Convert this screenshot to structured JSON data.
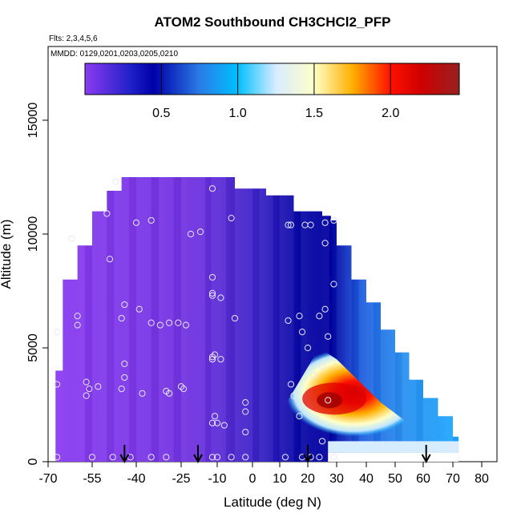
{
  "chart_data": {
    "type": "heatmap",
    "title": "ATOM2 Southbound CH3CHCl2_PFP",
    "flights_note": "Flts: 2,3,4,5,6",
    "dates_note": "MMDD: 0129,0201,0203,0205,0210",
    "xlabel": "Latitude (deg N)",
    "ylabel": "Altitude (m)",
    "xlim": [
      -70,
      80
    ],
    "ylim": [
      0,
      17500
    ],
    "x_ticks": [
      -70,
      -55,
      -40,
      -25,
      -10,
      0,
      10,
      20,
      30,
      40,
      50,
      60,
      70,
      80
    ],
    "x_tick_labels": [
      "-70",
      "-55",
      "-40",
      "-25",
      "-10",
      "0",
      "10",
      "20",
      "30",
      "40",
      "50",
      "60",
      "70",
      "80"
    ],
    "y_ticks": [
      0,
      5000,
      10000,
      15000
    ],
    "y_tick_labels": [
      "0",
      "5000",
      "10000",
      "15000"
    ],
    "colorbar": {
      "range": [
        0.0,
        2.45
      ],
      "ticks": [
        0.5,
        1.0,
        1.5,
        2.0
      ],
      "tick_labels": [
        "0.5",
        "1.0",
        "1.5",
        "2.0"
      ],
      "stops": [
        {
          "v": 0.0,
          "color": "#8b3cf0"
        },
        {
          "v": 0.3,
          "color": "#2020c8"
        },
        {
          "v": 0.45,
          "color": "#0000a8"
        },
        {
          "v": 0.75,
          "color": "#2a7be6"
        },
        {
          "v": 1.0,
          "color": "#00c0ff"
        },
        {
          "v": 1.25,
          "color": "#d8ecff"
        },
        {
          "v": 1.5,
          "color": "#ffffc8"
        },
        {
          "v": 1.75,
          "color": "#ffb000"
        },
        {
          "v": 2.0,
          "color": "#ff1000"
        },
        {
          "v": 2.2,
          "color": "#d00000"
        },
        {
          "v": 2.45,
          "color": "#962020"
        }
      ]
    },
    "field_extent": {
      "lat_min": -67.5,
      "lat_max": 72,
      "top_altitude": [
        [
          -67.5,
          4000
        ],
        [
          -65,
          8000
        ],
        [
          -60,
          9500
        ],
        [
          -55,
          11000
        ],
        [
          -50,
          11900
        ],
        [
          -45,
          12500
        ],
        [
          -20,
          12500
        ],
        [
          -10,
          12500
        ],
        [
          -5,
          12000
        ],
        [
          0,
          12000
        ],
        [
          5,
          11700
        ],
        [
          15,
          11000
        ],
        [
          25,
          10800
        ],
        [
          28,
          10600
        ],
        [
          30,
          9500
        ],
        [
          35,
          8000
        ],
        [
          40,
          7000
        ],
        [
          45,
          5800
        ],
        [
          50,
          4800
        ],
        [
          55,
          3600
        ],
        [
          60,
          2800
        ],
        [
          65,
          2000
        ],
        [
          70,
          1100
        ],
        [
          72,
          700
        ]
      ]
    },
    "hotspot": {
      "lat": 27,
      "alt": 2700,
      "peak_value": 2.3
    },
    "sample_points": [
      [
        -67,
        5700
      ],
      [
        -67,
        3400
      ],
      [
        -67,
        200
      ],
      [
        -62,
        9800
      ],
      [
        -60,
        6400
      ],
      [
        -60,
        6000
      ],
      [
        -57,
        3500
      ],
      [
        -57,
        2900
      ],
      [
        -56,
        3200
      ],
      [
        -53,
        3300
      ],
      [
        -50,
        10900
      ],
      [
        -49,
        8900
      ],
      [
        -47,
        12300
      ],
      [
        -45,
        3200
      ],
      [
        -44,
        3700
      ],
      [
        -44,
        4300
      ],
      [
        -44,
        6900
      ],
      [
        -45,
        6300
      ],
      [
        -40,
        10500
      ],
      [
        -39,
        6700
      ],
      [
        -38,
        3000
      ],
      [
        -35,
        10600
      ],
      [
        -35,
        6100
      ],
      [
        -32,
        6000
      ],
      [
        -30,
        3100
      ],
      [
        -29,
        3000
      ],
      [
        -29,
        6100
      ],
      [
        -26,
        6100
      ],
      [
        -25,
        3300
      ],
      [
        -24,
        3200
      ],
      [
        -23,
        6000
      ],
      [
        -21,
        10000
      ],
      [
        -17,
        10100
      ],
      [
        -6,
        10700
      ],
      [
        -12,
        12000
      ],
      [
        -12,
        8100
      ],
      [
        -12,
        7400
      ],
      [
        -12,
        7300
      ],
      [
        -12,
        4600
      ],
      [
        -12,
        4500
      ],
      [
        -11,
        4700
      ],
      [
        -9,
        7200
      ],
      [
        -9,
        4500
      ],
      [
        -11,
        2000
      ],
      [
        -10,
        1700
      ],
      [
        -12,
        1700
      ],
      [
        -8,
        1600
      ],
      [
        -5,
        6300
      ],
      [
        -2,
        2200
      ],
      [
        -2,
        2600
      ],
      [
        -2,
        1300
      ],
      [
        -12,
        200
      ],
      [
        -10,
        200
      ],
      [
        -6,
        200
      ],
      [
        -2,
        200
      ],
      [
        13,
        10400
      ],
      [
        14,
        10400
      ],
      [
        19,
        10400
      ],
      [
        13,
        6200
      ],
      [
        17,
        6400
      ],
      [
        18,
        5700
      ],
      [
        14,
        3400
      ],
      [
        15,
        2900
      ],
      [
        17,
        2000
      ],
      [
        21,
        10400
      ],
      [
        26,
        10500
      ],
      [
        29,
        10600
      ],
      [
        26,
        9600
      ],
      [
        29,
        7800
      ],
      [
        26,
        6700
      ],
      [
        24,
        6400
      ],
      [
        27,
        5500
      ],
      [
        20,
        5000
      ],
      [
        25,
        4200
      ],
      [
        22,
        3800
      ],
      [
        27,
        2700
      ],
      [
        25,
        900
      ],
      [
        12,
        200
      ],
      [
        18,
        200
      ],
      [
        21,
        200
      ],
      [
        24,
        200
      ],
      [
        29,
        200
      ],
      [
        70,
        600
      ],
      [
        -55,
        200
      ],
      [
        -48,
        200
      ],
      [
        -42,
        200
      ],
      [
        -35,
        200
      ],
      [
        -30,
        200
      ]
    ],
    "arrows_lat": [
      -44,
      -18,
      20,
      61
    ]
  }
}
